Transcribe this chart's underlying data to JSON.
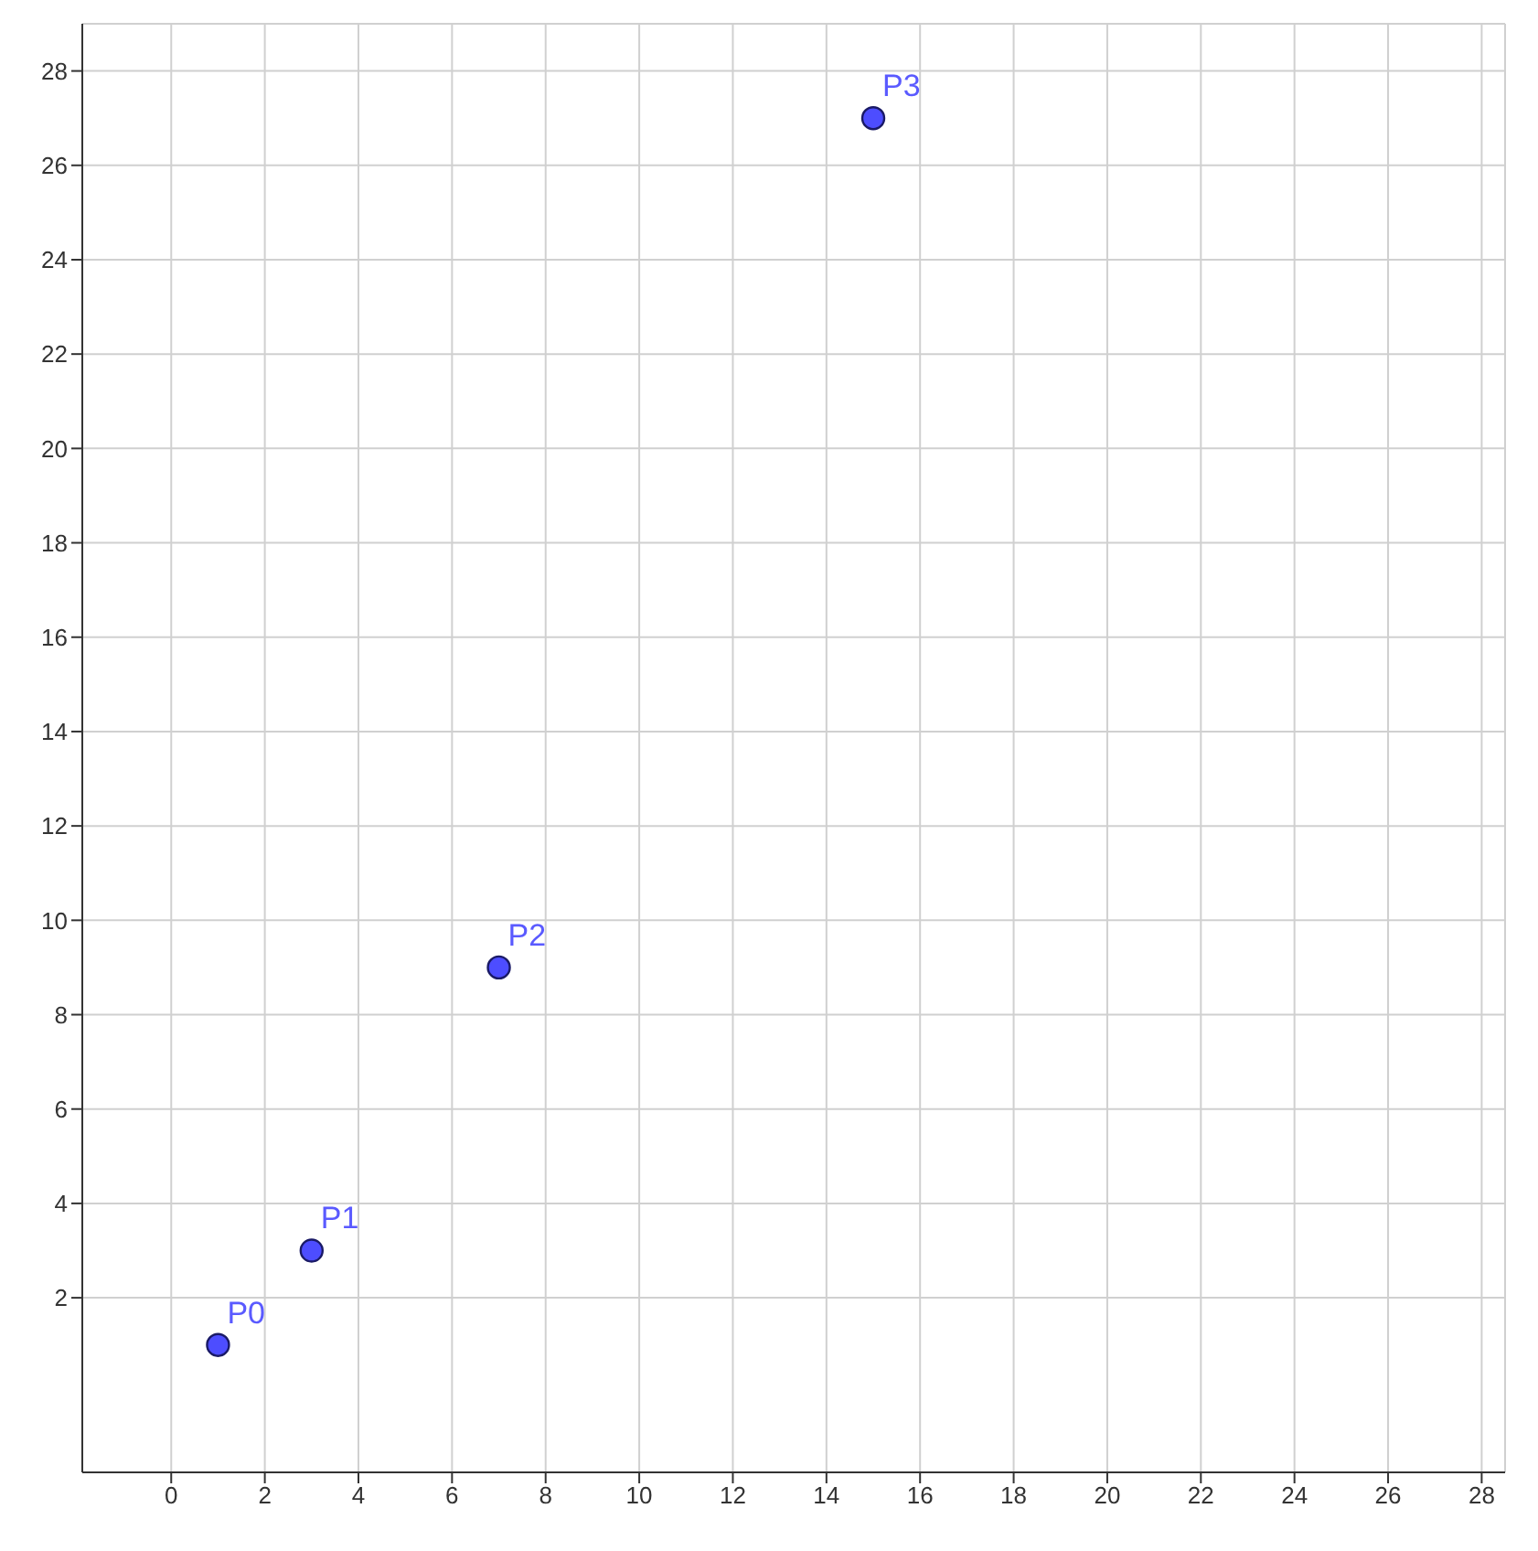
{
  "chart_data": {
    "type": "scatter",
    "xlim": [
      -1.9,
      28.5
    ],
    "ylim": [
      -1.7,
      29
    ],
    "xticks": [
      0,
      2,
      4,
      6,
      8,
      10,
      12,
      14,
      16,
      18,
      20,
      22,
      24,
      26,
      28
    ],
    "yticks": [
      2,
      4,
      6,
      8,
      10,
      12,
      14,
      16,
      18,
      20,
      22,
      24,
      26,
      28
    ],
    "grid": true,
    "marker": "circle",
    "series": [
      {
        "color": "#4d4dff",
        "x": [
          1,
          3,
          7,
          15
        ],
        "values": [
          1,
          3,
          9,
          27
        ]
      }
    ],
    "annotations": [
      {
        "text": "P0",
        "x": 1,
        "y": 1
      },
      {
        "text": "P1",
        "x": 3,
        "y": 3
      },
      {
        "text": "P2",
        "x": 7,
        "y": 9
      },
      {
        "text": "P3",
        "x": 15,
        "y": 27
      }
    ]
  }
}
